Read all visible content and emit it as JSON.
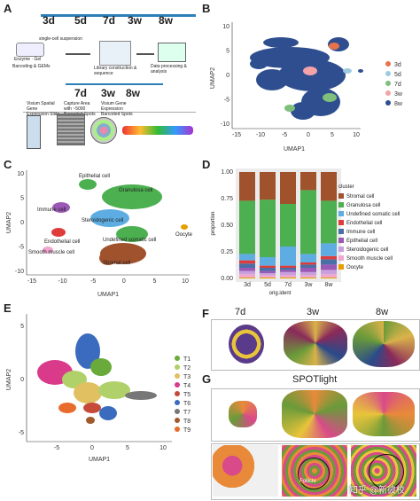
{
  "panel_labels": {
    "A": "A",
    "B": "B",
    "C": "C",
    "D": "D",
    "E": "E",
    "F": "F",
    "G": "G"
  },
  "panelA": {
    "timepoints_top": [
      "3d",
      "5d",
      "7d",
      "3w",
      "8w"
    ],
    "timepoints_mid": [
      "7d",
      "3w",
      "8w"
    ],
    "single_cell": "single-cell suspension",
    "enzyme": "Enzyme · Gel",
    "barcoding": "Barcoding & GEMs",
    "library": "Library construction & sequence",
    "data_processing": "Data processing & analysis",
    "visium1": "Visium Spatial Gene Expression Slide",
    "visium2": "Capture Area with ~5000 Barcoded Spots",
    "visium3": "Visium Gene Expression Barcoded Spots"
  },
  "panelB": {
    "xlabel": "UMAP1",
    "ylabel": "UMAP2",
    "xticks": [
      "-15",
      "-10",
      "-5",
      "0",
      "5",
      "10"
    ],
    "yticks": [
      "-10",
      "-5",
      "0",
      "5",
      "10"
    ],
    "legend": [
      {
        "label": "3d",
        "color": "#e8734a"
      },
      {
        "label": "5d",
        "color": "#9ecae1"
      },
      {
        "label": "7d",
        "color": "#7fbf7b"
      },
      {
        "label": "3w",
        "color": "#f4a3a8"
      },
      {
        "label": "8w",
        "color": "#2e4e8f"
      }
    ]
  },
  "panelC": {
    "xlabel": "UMAP1",
    "ylabel": "UMAP2",
    "xticks": [
      "-15",
      "-10",
      "-5",
      "0",
      "5",
      "10"
    ],
    "yticks": [
      "-10",
      "-5",
      "0",
      "5",
      "10"
    ],
    "labels": [
      "Epithelial cell",
      "Granulosa cell",
      "Immune cell",
      "Steroidogenic cell",
      "Undefined somatic cell",
      "Endothelial cell",
      "Oocyte",
      "Smooth muscle cell",
      "Stromal cell"
    ]
  },
  "panelD": {
    "ylabel": "proportion",
    "xlabel": "orig.ident",
    "yticks": [
      "0.00",
      "0.25",
      "0.50",
      "0.75",
      "1.00"
    ],
    "legend_title": "cluster",
    "chart_data": {
      "type": "bar",
      "stacked": true,
      "categories": [
        "3d",
        "5d",
        "7d",
        "3w",
        "8w"
      ],
      "series": [
        {
          "name": "Oocyte",
          "color": "#e69f00",
          "values": [
            0.01,
            0.01,
            0.01,
            0.01,
            0.01
          ]
        },
        {
          "name": "Smooth muscle cell",
          "color": "#f0a6d0",
          "values": [
            0.03,
            0.02,
            0.02,
            0.02,
            0.03
          ]
        },
        {
          "name": "Steroidogenic cell",
          "color": "#c9a0dc",
          "values": [
            0.03,
            0.02,
            0.03,
            0.03,
            0.04
          ]
        },
        {
          "name": "Epithelial cell",
          "color": "#9b59b6",
          "values": [
            0.03,
            0.02,
            0.02,
            0.04,
            0.05
          ]
        },
        {
          "name": "Immune cell",
          "color": "#4a6fa5",
          "values": [
            0.04,
            0.03,
            0.02,
            0.03,
            0.05
          ]
        },
        {
          "name": "Endothelial cell",
          "color": "#e03b3b",
          "values": [
            0.03,
            0.02,
            0.02,
            0.02,
            0.03
          ]
        },
        {
          "name": "Undefined somatic cell",
          "color": "#5dade2",
          "values": [
            0.06,
            0.08,
            0.18,
            0.08,
            0.12
          ]
        },
        {
          "name": "Granulosa cell",
          "color": "#4caf50",
          "values": [
            0.5,
            0.54,
            0.4,
            0.6,
            0.4
          ]
        },
        {
          "name": "Stromal cell",
          "color": "#a0522d",
          "values": [
            0.27,
            0.26,
            0.3,
            0.17,
            0.27
          ]
        }
      ],
      "ylim": [
        0,
        1
      ]
    },
    "legend_order": [
      "Stromal cell",
      "Granulosa cell",
      "Undefined somatic cell",
      "Endothelial cell",
      "Immune cell",
      "Epithelial cell",
      "Steroidogenic cell",
      "Smooth muscle cell",
      "Oocyte"
    ]
  },
  "panelE": {
    "xlabel": "UMAP1",
    "ylabel": "UMAP2",
    "xticks": [
      "-5",
      "0",
      "5",
      "10"
    ],
    "yticks": [
      "-5",
      "0",
      "5"
    ],
    "legend": [
      {
        "label": "T1",
        "color": "#6aaa3a"
      },
      {
        "label": "T2",
        "color": "#b0d16a"
      },
      {
        "label": "T3",
        "color": "#e0c060"
      },
      {
        "label": "T4",
        "color": "#d93a8a"
      },
      {
        "label": "T5",
        "color": "#c54a3a"
      },
      {
        "label": "T6",
        "color": "#3a6bbf"
      },
      {
        "label": "T7",
        "color": "#777777"
      },
      {
        "label": "T8",
        "color": "#a05a2c"
      },
      {
        "label": "T9",
        "color": "#e86c2c"
      }
    ]
  },
  "panelF": {
    "timepoints": [
      "7d",
      "3w",
      "8w"
    ]
  },
  "panelG": {
    "title": "SPOTlight",
    "follicle": "Follicle"
  },
  "watermark": "知乎 @新彼校"
}
